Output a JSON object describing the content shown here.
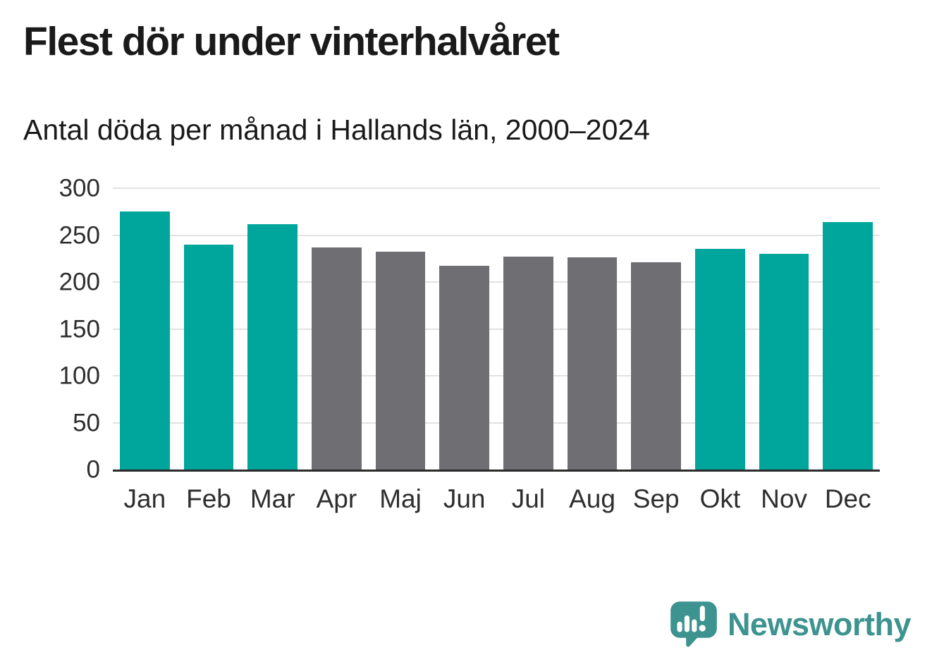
{
  "title": "Flest dör under vinterhalvåret",
  "subtitle": "Antal döda per månad i Hallands län, 2000–2024",
  "chart_data": {
    "type": "bar",
    "title": "Flest dör under vinterhalvåret",
    "subtitle": "Antal döda per månad i Hallands län, 2000–2024",
    "categories": [
      "Jan",
      "Feb",
      "Mar",
      "Apr",
      "Maj",
      "Jun",
      "Jul",
      "Aug",
      "Sep",
      "Okt",
      "Nov",
      "Dec"
    ],
    "values": [
      275,
      240,
      262,
      237,
      232,
      217,
      227,
      226,
      221,
      235,
      230,
      264
    ],
    "highlighted": [
      true,
      true,
      true,
      false,
      false,
      false,
      false,
      false,
      false,
      true,
      true,
      true
    ],
    "highlight_color": "#00A59C",
    "base_color": "#6F6E73",
    "xlabel": "",
    "ylabel": "",
    "ylim": [
      0,
      300
    ],
    "yticks": [
      0,
      50,
      100,
      150,
      200,
      250,
      300
    ],
    "grid": true,
    "legend_position": "none"
  },
  "colors": {
    "background": "#FFFFFF",
    "grid_line": "#E2E2E2",
    "axis_line": "#2B2B2B",
    "title_text": "#1A1A1A",
    "tick_text": "#2E2E2E",
    "logo": "#3D938F"
  },
  "logo": {
    "text": "Newsworthy",
    "icon": "newsworthy-speech-bubble-chart-icon"
  }
}
